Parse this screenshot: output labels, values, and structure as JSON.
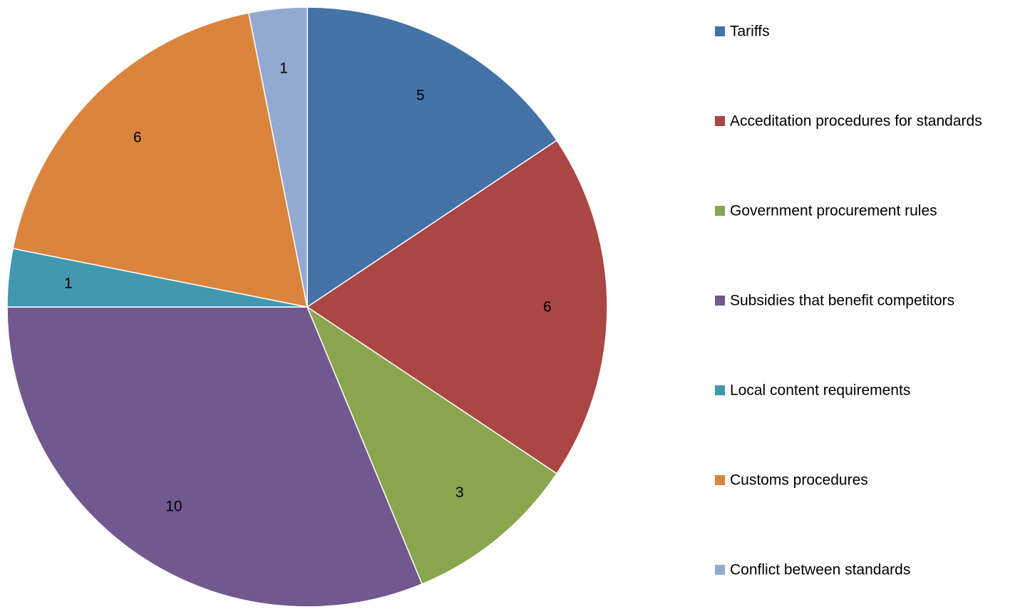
{
  "chart_data": {
    "type": "pie",
    "title": "",
    "legend_position": "right",
    "slices": [
      {
        "label": "Tariffs",
        "value": 5,
        "color": "#4572A7"
      },
      {
        "label": "Acceditation procedures for standards",
        "value": 6,
        "color": "#AA4643"
      },
      {
        "label": "Government procurement rules",
        "value": 3,
        "color": "#89A54E"
      },
      {
        "label": "Subsidies that benefit competitors",
        "value": 10,
        "color": "#71588F"
      },
      {
        "label": "Local content requirements",
        "value": 1,
        "color": "#4198AF"
      },
      {
        "label": "Customs procedures",
        "value": 6,
        "color": "#DB843D"
      },
      {
        "label": "Conflict between standards",
        "value": 1,
        "color": "#93A9CF"
      }
    ]
  }
}
